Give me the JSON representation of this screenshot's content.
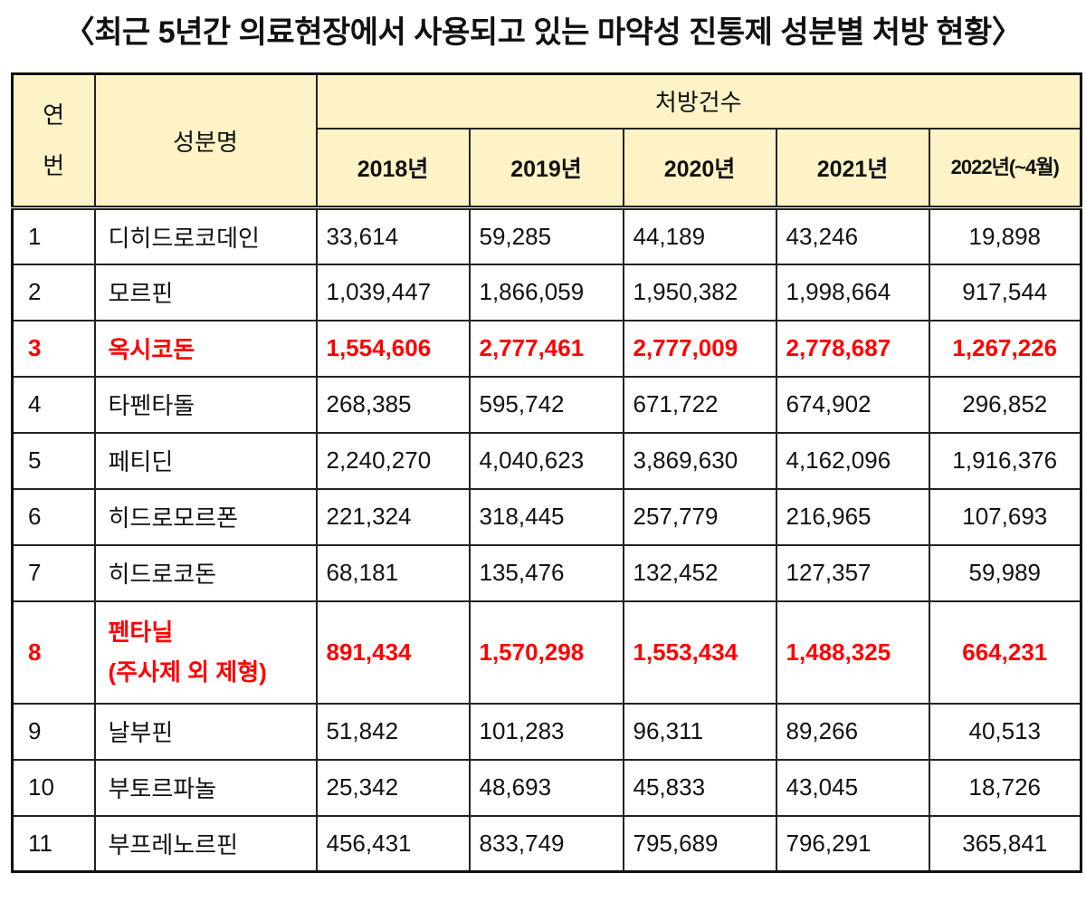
{
  "title": "〈최근 5년간 의료현장에서 사용되고 있는 마약성 진통제 성분별 처방 현황〉",
  "table": {
    "headers": {
      "index": "연\n번",
      "index_line1": "연",
      "index_line2": "번",
      "name": "성분명",
      "group": "처방건수",
      "years": [
        "2018년",
        "2019년",
        "2020년",
        "2021년",
        "2022년(~4월)"
      ]
    },
    "highlight_color": "#ff0000",
    "header_bg": "#fdf3c6",
    "rows": [
      {
        "no": "1",
        "name": "디히드로코데인",
        "values": [
          "33,614",
          "59,285",
          "44,189",
          "43,246",
          "19,898"
        ],
        "highlight": false
      },
      {
        "no": "2",
        "name": "모르핀",
        "values": [
          "1,039,447",
          "1,866,059",
          "1,950,382",
          "1,998,664",
          "917,544"
        ],
        "highlight": false
      },
      {
        "no": "3",
        "name": "옥시코돈",
        "values": [
          "1,554,606",
          "2,777,461",
          "2,777,009",
          "2,778,687",
          "1,267,226"
        ],
        "highlight": true
      },
      {
        "no": "4",
        "name": "타펜타돌",
        "values": [
          "268,385",
          "595,742",
          "671,722",
          "674,902",
          "296,852"
        ],
        "highlight": false
      },
      {
        "no": "5",
        "name": "페티딘",
        "values": [
          "2,240,270",
          "4,040,623",
          "3,869,630",
          "4,162,096",
          "1,916,376"
        ],
        "highlight": false
      },
      {
        "no": "6",
        "name": "히드로모르폰",
        "values": [
          "221,324",
          "318,445",
          "257,779",
          "216,965",
          "107,693"
        ],
        "highlight": false
      },
      {
        "no": "7",
        "name": "히드로코돈",
        "values": [
          "68,181",
          "135,476",
          "132,452",
          "127,357",
          "59,989"
        ],
        "highlight": false
      },
      {
        "no": "8",
        "name": "펜타닐",
        "name2": "(주사제 외 제형)",
        "values": [
          "891,434",
          "1,570,298",
          "1,553,434",
          "1,488,325",
          "664,231"
        ],
        "highlight": true
      },
      {
        "no": "9",
        "name": "날부핀",
        "values": [
          "51,842",
          "101,283",
          "96,311",
          "89,266",
          "40,513"
        ],
        "highlight": false
      },
      {
        "no": "10",
        "name": "부토르파놀",
        "values": [
          "25,342",
          "48,693",
          "45,833",
          "43,045",
          "18,726"
        ],
        "highlight": false
      },
      {
        "no": "11",
        "name": "부프레노르핀",
        "values": [
          "456,431",
          "833,749",
          "795,689",
          "796,291",
          "365,841"
        ],
        "highlight": false
      }
    ]
  }
}
